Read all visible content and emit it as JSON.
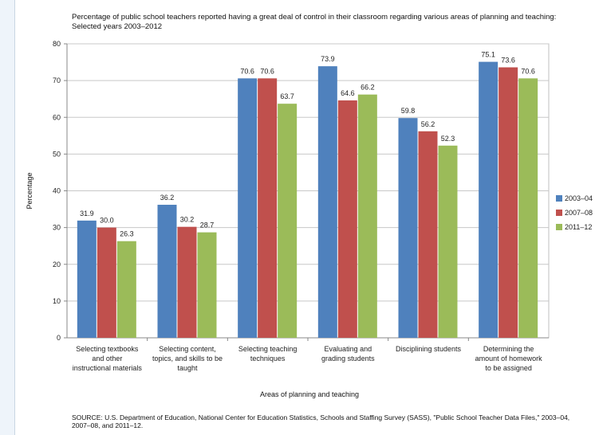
{
  "chart_data": {
    "type": "bar",
    "title": "Percentage of public school teachers reported having a great deal of control in their classroom regarding various areas of planning and teaching: Selected years 2003–2012",
    "xlabel": "Areas of planning and teaching",
    "ylabel": "Percentage",
    "ylim": [
      0,
      80
    ],
    "yticks": [
      0,
      10,
      20,
      30,
      40,
      50,
      60,
      70,
      80
    ],
    "grid": true,
    "legend_position": "right",
    "categories": [
      [
        "Selecting textbooks",
        "and other",
        "instructional materials"
      ],
      [
        "Selecting content,",
        "topics, and skills to be",
        "taught"
      ],
      [
        "Selecting teaching",
        "techniques"
      ],
      [
        "Evaluating and",
        "grading students"
      ],
      [
        "Disciplining students"
      ],
      [
        "Determining the",
        "amount of homework",
        "to be assigned"
      ]
    ],
    "series": [
      {
        "name": "2003–04",
        "color": "#4f81bd",
        "values": [
          31.9,
          36.2,
          70.6,
          73.9,
          59.8,
          75.1
        ]
      },
      {
        "name": "2007–08",
        "color": "#c0504d",
        "values": [
          30.0,
          30.2,
          70.6,
          64.6,
          56.2,
          73.6
        ]
      },
      {
        "name": "2011–12",
        "color": "#9bbb59",
        "values": [
          26.3,
          28.7,
          63.7,
          66.2,
          52.3,
          70.6
        ]
      }
    ]
  },
  "source": "SOURCE: U.S. Department of Education, National Center for Education Statistics, Schools and Staffing Survey (SASS), \"Public School Teacher Data Files,\" 2003–04, 2007–08, and 2011–12."
}
